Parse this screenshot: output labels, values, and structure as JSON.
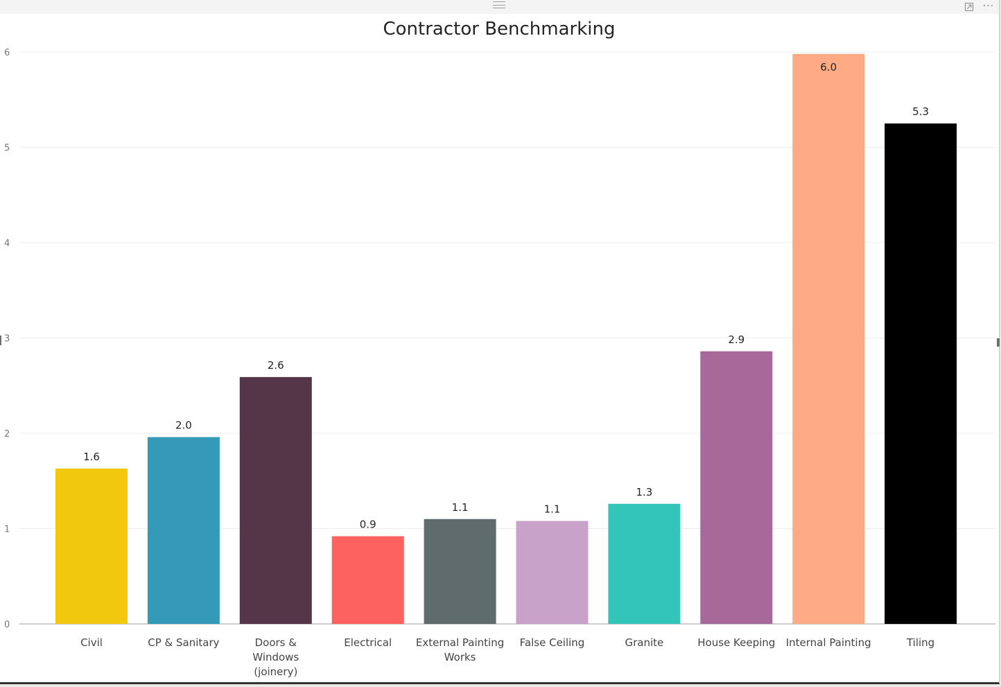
{
  "header": {
    "focus_icon": "focus-mode-icon",
    "more_icon": "more-options-icon",
    "more_glyph": "···"
  },
  "chart_data": {
    "type": "bar",
    "title": "Contractor Benchmarking",
    "xlabel": "",
    "ylabel": "",
    "ylim": [
      0,
      6
    ],
    "yticks": [
      0,
      1,
      2,
      3,
      4,
      5,
      6
    ],
    "grid": true,
    "categories": [
      "Civil",
      "CP & Sanitary",
      "Doors & Windows (joinery)",
      "Electrical",
      "External Painting Works",
      "False Ceiling",
      "Granite",
      "House Keeping",
      "Internal Painting",
      "Tiling"
    ],
    "category_lines": [
      [
        "Civil"
      ],
      [
        "CP & Sanitary"
      ],
      [
        "Doors &",
        "Windows",
        "(joinery)"
      ],
      [
        "Electrical"
      ],
      [
        "External Painting",
        "Works"
      ],
      [
        "False Ceiling"
      ],
      [
        "Granite"
      ],
      [
        "House Keeping"
      ],
      [
        "Internal Painting"
      ],
      [
        "Tiling"
      ]
    ],
    "values": [
      1.63,
      1.96,
      2.59,
      0.92,
      1.1,
      1.08,
      1.26,
      2.86,
      5.98,
      5.25
    ],
    "data_labels": [
      "1.6",
      "2.0",
      "2.6",
      "0.9",
      "1.1",
      "1.1",
      "1.3",
      "2.9",
      "6.0",
      "5.3"
    ],
    "colors": [
      "#F2C80F",
      "#3599B8",
      "#553649",
      "#FD625E",
      "#5F6B6D",
      "#C8A2C8",
      "#33C5B9",
      "#A66999",
      "#FEAB85",
      "#000000"
    ]
  }
}
